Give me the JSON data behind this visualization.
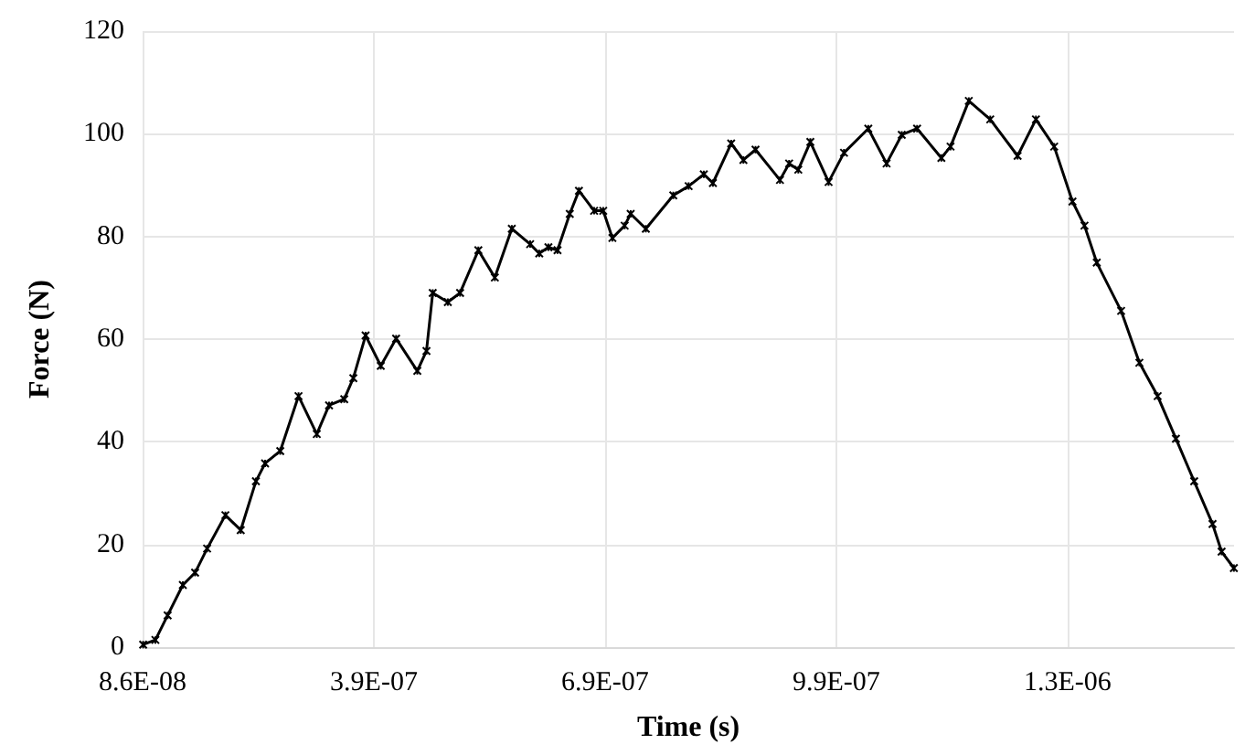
{
  "chart_data": {
    "type": "line",
    "xlabel": "Time (s)",
    "ylabel": "Force (N)",
    "x": [
      8.67e-08,
      1.026e-07,
      1.185e-07,
      1.382e-07,
      1.541e-07,
      1.697e-07,
      1.934e-07,
      2.133e-07,
      2.33e-07,
      2.449e-07,
      2.646e-07,
      2.883e-07,
      3.12e-07,
      3.279e-07,
      3.476e-07,
      3.594e-07,
      3.753e-07,
      3.95e-07,
      4.149e-07,
      4.424e-07,
      4.543e-07,
      4.624e-07,
      4.82e-07,
      4.979e-07,
      5.216e-07,
      5.43e-07,
      5.65e-07,
      5.888e-07,
      6.006e-07,
      6.125e-07,
      6.243e-07,
      6.402e-07,
      6.521e-07,
      6.718e-07,
      6.836e-07,
      6.955e-07,
      7.114e-07,
      7.192e-07,
      7.389e-07,
      7.745e-07,
      7.944e-07,
      8.141e-07,
      8.259e-07,
      8.496e-07,
      8.655e-07,
      8.812e-07,
      9.129e-07,
      9.248e-07,
      9.367e-07,
      9.523e-07,
      9.76e-07,
      9.96e-07,
      1.0275e-06,
      1.0512e-06,
      1.0709e-06,
      1.0908e-06,
      1.1223e-06,
      1.1342e-06,
      1.1579e-06,
      1.1857e-06,
      1.2212e-06,
      1.245e-06,
      1.2687e-06,
      1.2924e-06,
      1.308e-06,
      1.3239e-06,
      1.3555e-06,
      1.3792e-06,
      1.4029e-06,
      1.4266e-06,
      1.4503e-06,
      1.4741e-06,
      1.4859e-06,
      1.5018e-06
    ],
    "series": [
      {
        "color": "#000000",
        "values": [
          0.5,
          1.4,
          6.2,
          12.1,
          14.5,
          19.2,
          25.7,
          22.8,
          32.3,
          35.8,
          38.2,
          48.9,
          41.5,
          47.1,
          48.3,
          52.4,
          60.7,
          54.8,
          60.1,
          53.8,
          57.7,
          69.0,
          67.2,
          69.0,
          77.3,
          72.0,
          81.5,
          78.5,
          76.7,
          77.9,
          77.3,
          84.4,
          88.9,
          85.0,
          85.0,
          79.7,
          82.1,
          84.4,
          81.5,
          88.0,
          89.8,
          92.1,
          90.4,
          98.1,
          94.9,
          96.9,
          91.0,
          94.2,
          93.0,
          98.4,
          90.6,
          96.3,
          101.0,
          94.2,
          99.8,
          101.0,
          95.3,
          97.5,
          106.4,
          102.8,
          95.7,
          102.8,
          97.5,
          86.8,
          82.1,
          74.9,
          65.5,
          55.4,
          48.9,
          40.6,
          32.3,
          24.0,
          18.6,
          15.4
        ]
      }
    ],
    "xlim": [
      8.6e-08,
      1.502e-06
    ],
    "xticks": [
      {
        "value": 8.6e-08,
        "label": "8.6E-08"
      },
      {
        "value": 3.86e-07,
        "label": "3.9E-07"
      },
      {
        "value": 6.86e-07,
        "label": "6.9E-07"
      },
      {
        "value": 9.86e-07,
        "label": "9.9E-07"
      },
      {
        "value": 1.286e-06,
        "label": "1.3E-06"
      }
    ],
    "ylim": [
      0,
      120
    ],
    "yticks": [
      0,
      20,
      40,
      60,
      80,
      100,
      120
    ],
    "grid": true,
    "marker": "cross",
    "line_style": "solid"
  }
}
